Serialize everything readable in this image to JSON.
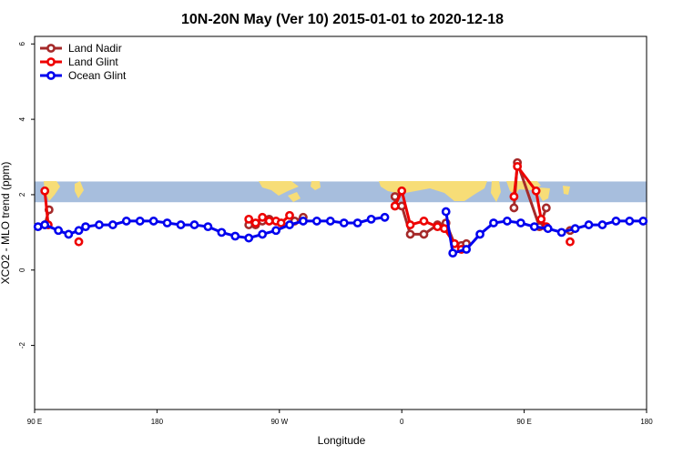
{
  "chart_data": {
    "type": "line",
    "title": "10N-20N May (Ver 10)   2015-01-01 to 2020-12-18",
    "xlabel": "Longitude",
    "ylabel": "XCO2 - MLO trend (ppm)",
    "xlim": [
      90,
      450
    ],
    "ylim": [
      -3.7,
      6.2
    ],
    "x_ticks": [
      {
        "value": 90,
        "label": "90 E"
      },
      {
        "value": 162,
        "label": "180"
      },
      {
        "value": 234,
        "label": "90 W"
      },
      {
        "value": 306,
        "label": "0"
      },
      {
        "value": 378,
        "label": "90 E"
      },
      {
        "value": 450,
        "label": "180"
      }
    ],
    "y_ticks": [
      -2,
      0,
      2,
      4,
      6
    ],
    "legend_position": "top-left",
    "background_map_band": {
      "y_range": [
        1.8,
        2.35
      ],
      "ocean_color": "#a7bedd",
      "land_color": "#f7dd77"
    },
    "series": [
      {
        "name": "Land Nadir",
        "color": "#a52a2a",
        "segments": [
          [
            [
              96,
              1.2
            ],
            [
              98.5,
              1.6
            ]
          ],
          [
            [
              216,
              1.2
            ],
            [
              220,
              1.2
            ],
            [
              224,
              1.3
            ],
            [
              228,
              1.35
            ]
          ],
          [
            [
              243,
              1.3
            ],
            [
              248,
              1.4
            ]
          ],
          [
            [
              302,
              1.95
            ],
            [
              302,
              1.7
            ],
            [
              306,
              1.7
            ],
            [
              311,
              0.95
            ],
            [
              319,
              0.95
            ],
            [
              327,
              1.2
            ],
            [
              332,
              1.25
            ],
            [
              337,
              0.7
            ],
            [
              341,
              0.65
            ],
            [
              344,
              0.7
            ]
          ],
          [
            [
              372,
              1.65
            ],
            [
              374,
              2.85
            ],
            [
              387,
              1.15
            ],
            [
              391,
              1.65
            ]
          ],
          [
            [
              405,
              1.05
            ]
          ]
        ]
      },
      {
        "name": "Land Glint",
        "color": "#ee0000",
        "segments": [
          [
            [
              96,
              2.1
            ],
            [
              98,
              1.2
            ]
          ],
          [
            [
              116,
              0.75
            ]
          ],
          [
            [
              216,
              1.35
            ],
            [
              220,
              1.25
            ],
            [
              224,
              1.4
            ],
            [
              228,
              1.3
            ],
            [
              232,
              1.3
            ],
            [
              235,
              1.25
            ],
            [
              240,
              1.45
            ]
          ],
          [
            [
              302,
              1.7
            ],
            [
              306,
              2.1
            ],
            [
              311,
              1.2
            ],
            [
              319,
              1.3
            ],
            [
              327,
              1.15
            ],
            [
              331,
              1.1
            ],
            [
              337,
              0.7
            ],
            [
              341,
              0.55
            ]
          ],
          [
            [
              372,
              1.95
            ],
            [
              374,
              2.75
            ],
            [
              385,
              2.1
            ],
            [
              388,
              1.35
            ],
            [
              391,
              1.15
            ]
          ],
          [
            [
              405,
              0.75
            ]
          ]
        ]
      },
      {
        "name": "Ocean Glint",
        "color": "#0000ee",
        "segments": [
          [
            [
              92,
              1.15
            ],
            [
              96,
              1.2
            ],
            [
              104,
              1.05
            ],
            [
              110,
              0.95
            ],
            [
              116,
              1.05
            ],
            [
              120,
              1.15
            ],
            [
              128,
              1.2
            ],
            [
              136,
              1.2
            ],
            [
              144,
              1.3
            ],
            [
              152,
              1.3
            ],
            [
              160,
              1.3
            ],
            [
              168,
              1.25
            ],
            [
              176,
              1.2
            ],
            [
              184,
              1.2
            ],
            [
              192,
              1.15
            ],
            [
              200,
              1.0
            ],
            [
              208,
              0.9
            ],
            [
              216,
              0.85
            ],
            [
              224,
              0.95
            ],
            [
              232,
              1.05
            ],
            [
              240,
              1.2
            ],
            [
              248,
              1.3
            ],
            [
              256,
              1.3
            ],
            [
              264,
              1.3
            ],
            [
              272,
              1.25
            ],
            [
              280,
              1.25
            ],
            [
              288,
              1.35
            ],
            [
              296,
              1.4
            ]
          ],
          [
            [
              332,
              1.55
            ],
            [
              336,
              0.45
            ],
            [
              344,
              0.55
            ],
            [
              352,
              0.95
            ],
            [
              360,
              1.25
            ],
            [
              368,
              1.3
            ],
            [
              376,
              1.25
            ],
            [
              384,
              1.15
            ],
            [
              392,
              1.1
            ],
            [
              400,
              1.0
            ],
            [
              408,
              1.1
            ],
            [
              416,
              1.2
            ],
            [
              424,
              1.2
            ],
            [
              432,
              1.3
            ],
            [
              440,
              1.3
            ],
            [
              448,
              1.3
            ]
          ]
        ]
      }
    ]
  }
}
